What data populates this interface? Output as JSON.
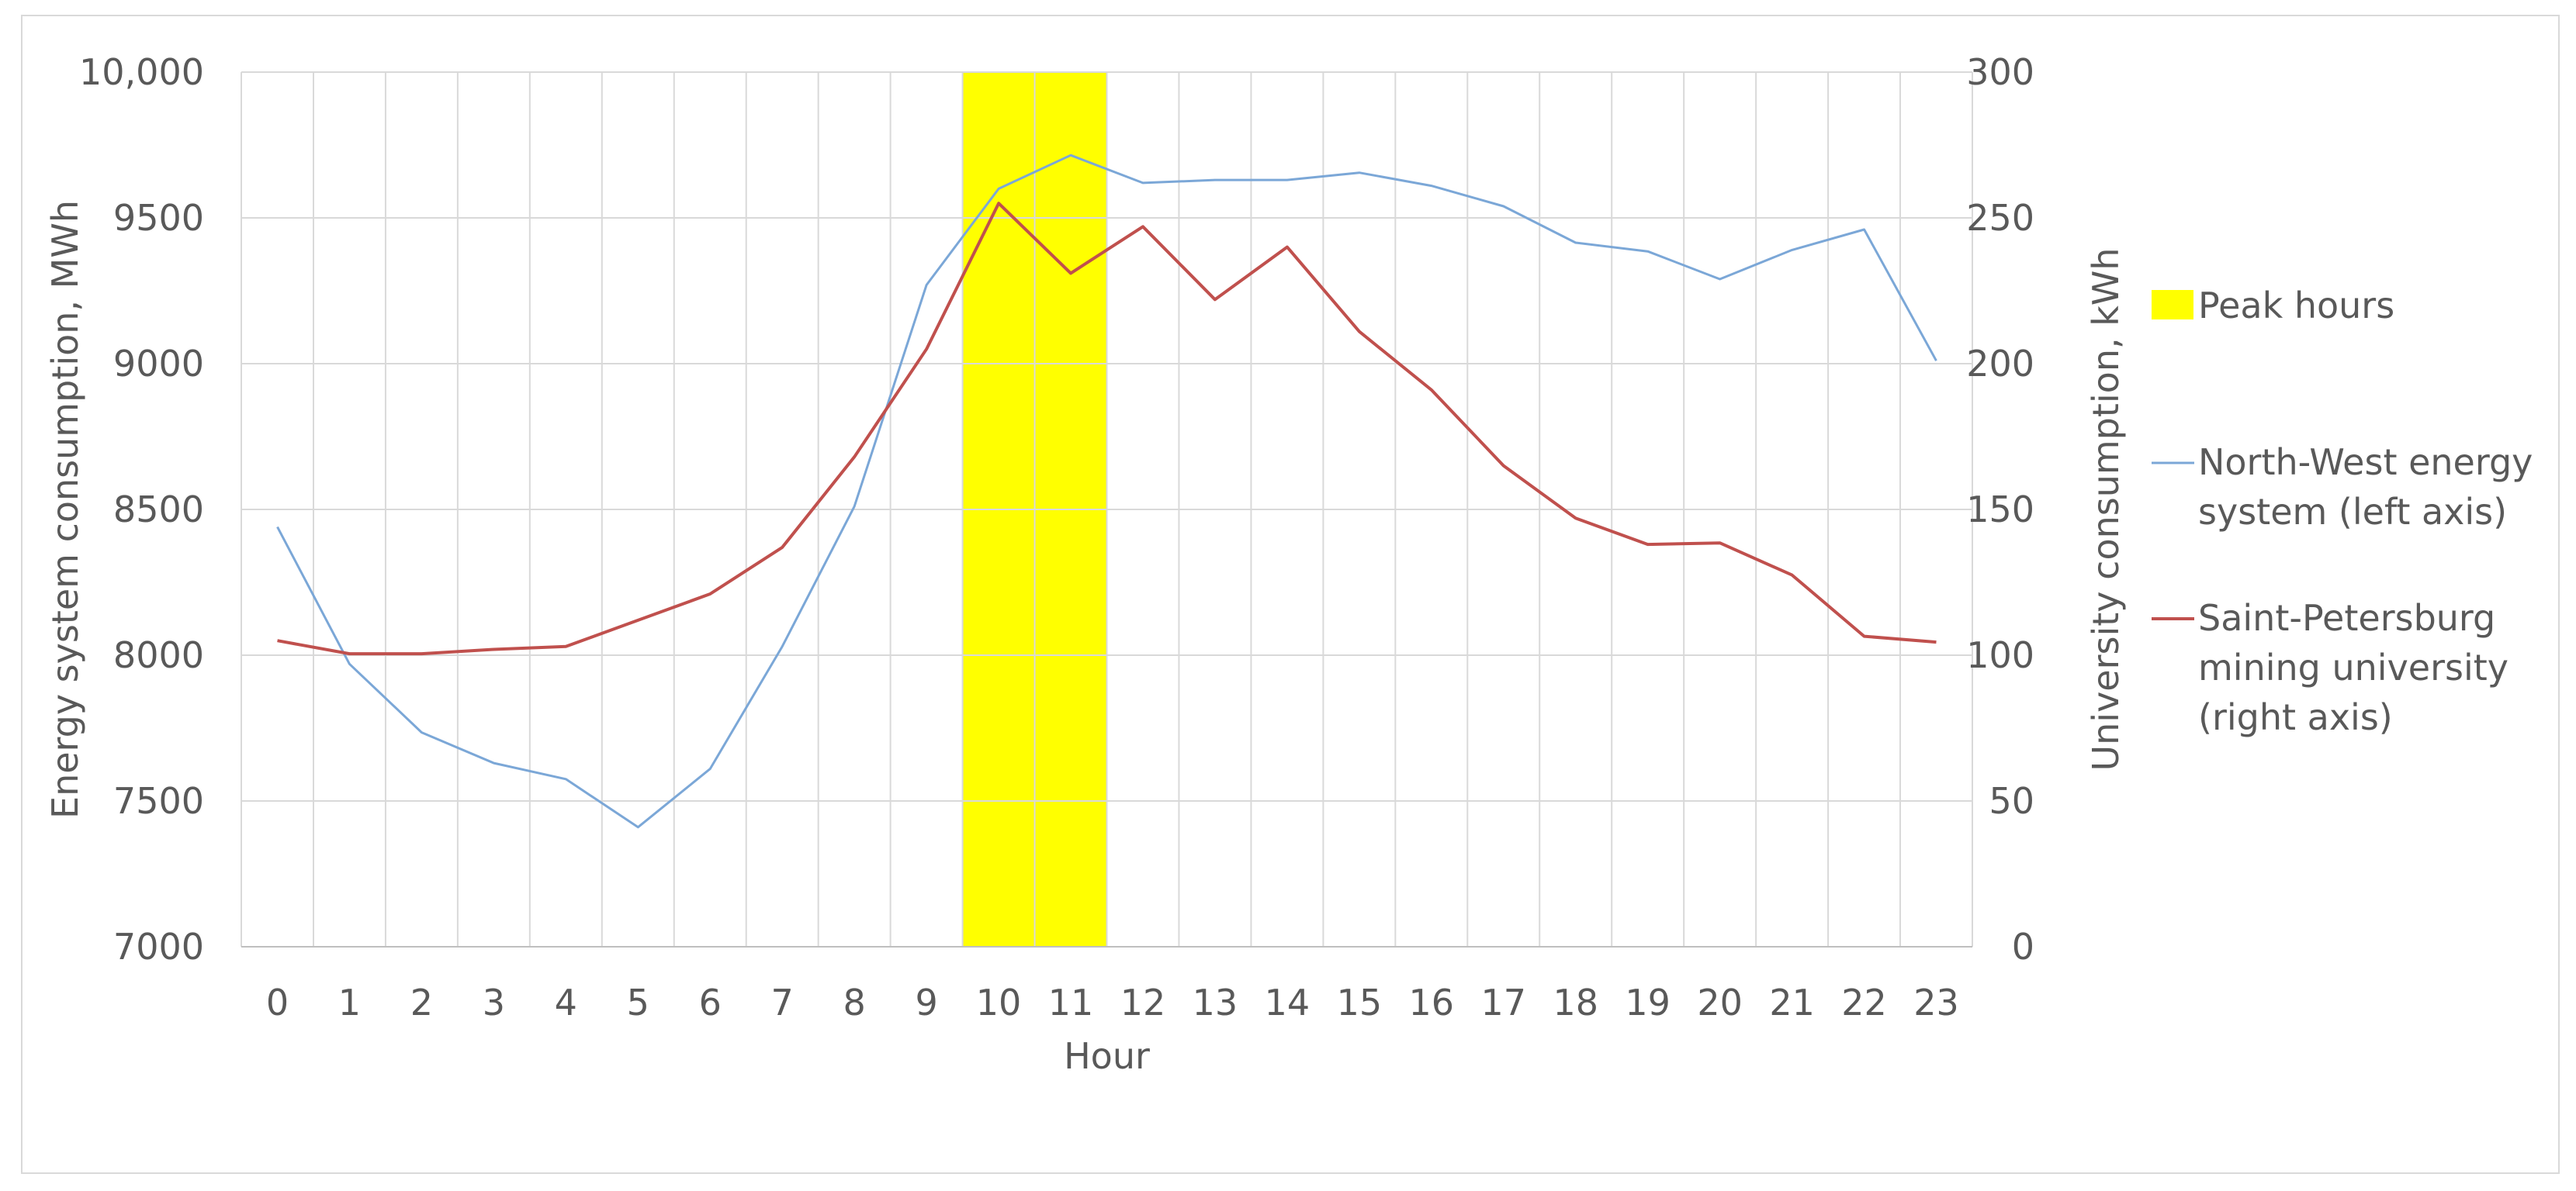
{
  "chart_data": {
    "type": "line",
    "title": "",
    "xlabel": "Hour",
    "ylabel": "Energy system consumption, MWh",
    "ylabel_right": "University consumption, kWh",
    "x": [
      0,
      1,
      2,
      3,
      4,
      5,
      6,
      7,
      8,
      9,
      10,
      11,
      12,
      13,
      14,
      15,
      16,
      17,
      18,
      19,
      20,
      21,
      22,
      23
    ],
    "x_tick_labels": [
      "0",
      "1",
      "2",
      "3",
      "4",
      "5",
      "6",
      "7",
      "8",
      "9",
      "10",
      "11",
      "12",
      "13",
      "14",
      "15",
      "16",
      "17",
      "18",
      "19",
      "20",
      "21",
      "22",
      "23"
    ],
    "ylim": [
      7000,
      10000
    ],
    "ylim_right": [
      0,
      300
    ],
    "y_tick_labels": [
      "7000",
      "7500",
      "8000",
      "8500",
      "9000",
      "9500",
      "10,000"
    ],
    "y_tick_values": [
      7000,
      7500,
      8000,
      8500,
      9000,
      9500,
      10000
    ],
    "y_right_tick_labels": [
      "0",
      "50",
      "100",
      "150",
      "200",
      "250",
      "300"
    ],
    "y_right_tick_values": [
      0,
      50,
      100,
      150,
      200,
      250,
      300
    ],
    "grid": true,
    "legend_position": "right",
    "highlight": {
      "name": "Peak hours",
      "x_range": [
        10,
        11
      ],
      "color": "#FFFF00"
    },
    "series": [
      {
        "name": "North-West energy system (left axis)",
        "name_lines": [
          "North-West energy",
          "system (left axis)"
        ],
        "axis": "left",
        "color": "#7BA7D7",
        "values": [
          8440,
          7970,
          7735,
          7630,
          7575,
          7410,
          7610,
          8030,
          8510,
          9270,
          9600,
          9715,
          9620,
          9630,
          9630,
          9655,
          9610,
          9540,
          9415,
          9385,
          9290,
          9390,
          9460,
          9010
        ]
      },
      {
        "name": "Saint-Petersburg mining university (right axis)",
        "name_lines": [
          "Saint-Petersburg",
          "mining university",
          "(right axis)"
        ],
        "axis": "right",
        "color": "#C0504D",
        "values": [
          105,
          100.5,
          100.5,
          102,
          103,
          112,
          121,
          137,
          168,
          205,
          255,
          231,
          247,
          222,
          240,
          211,
          191,
          165,
          147,
          138,
          138.5,
          127.5,
          106.5,
          104.5
        ]
      }
    ]
  }
}
